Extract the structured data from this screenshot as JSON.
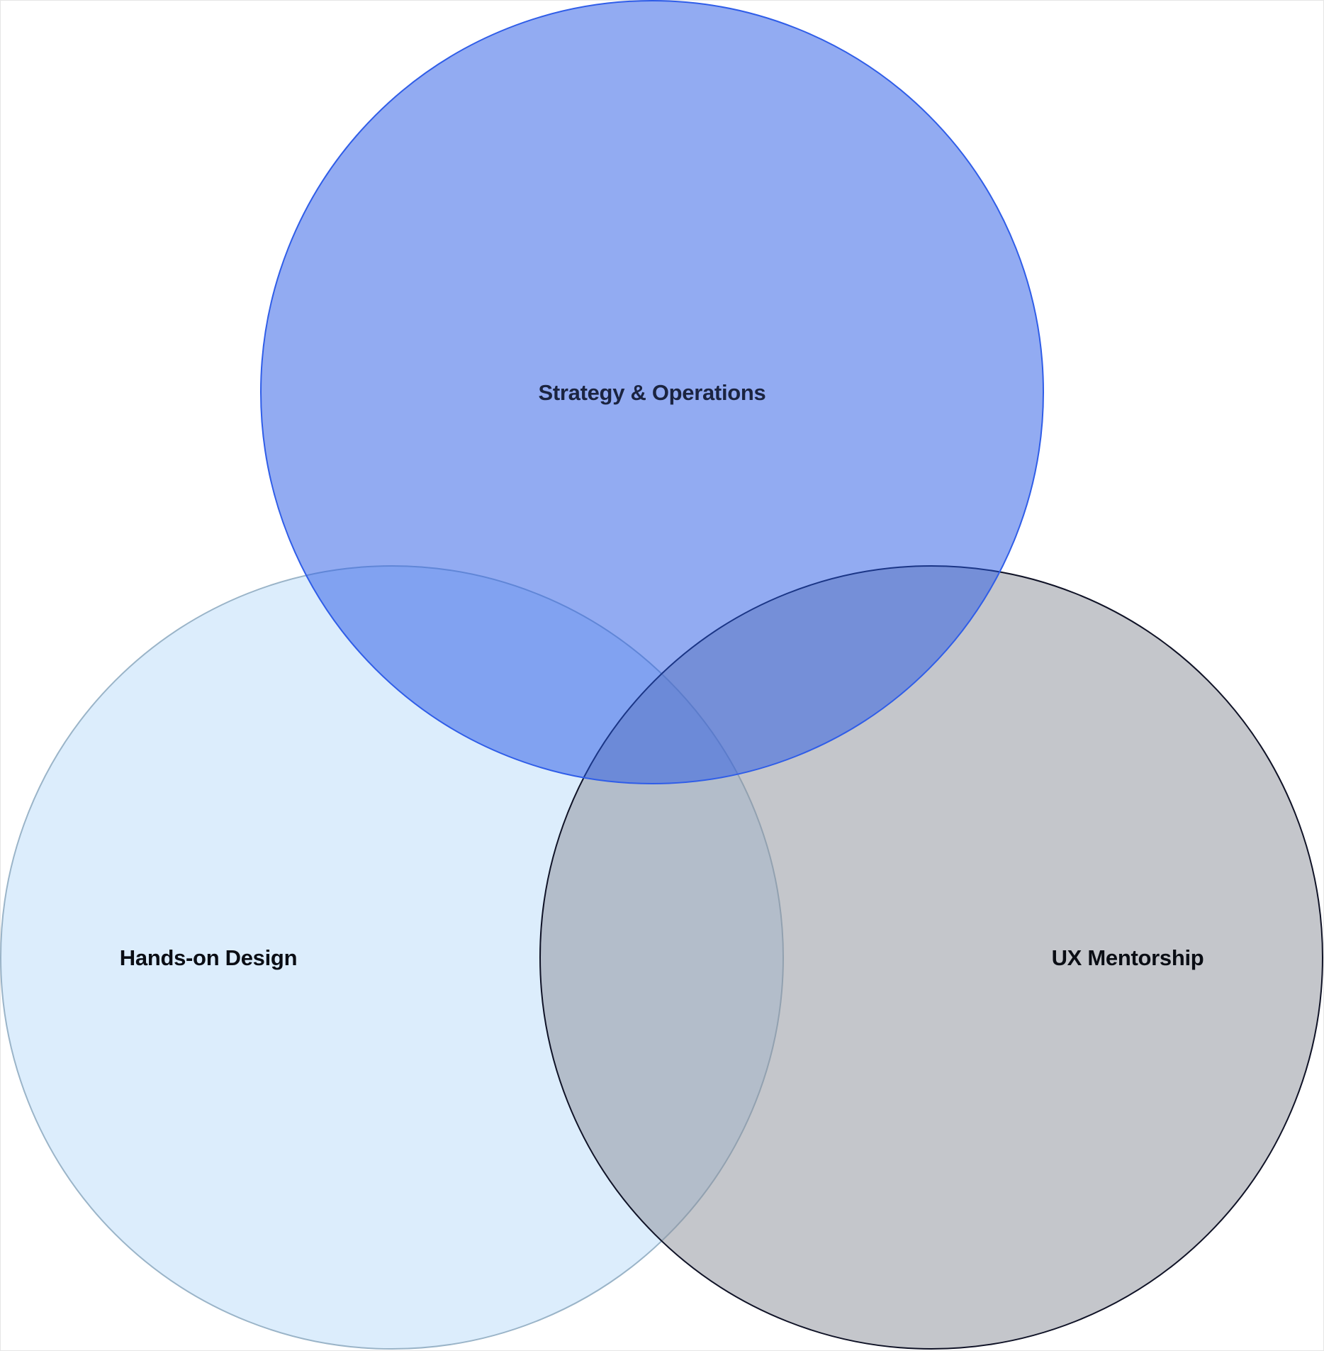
{
  "diagram": {
    "type": "venn",
    "sets": [
      {
        "id": "strategy",
        "label": "Strategy & Operations",
        "fill": "#2557e6",
        "fill_opacity": 0.5,
        "stroke": "#2f5de8",
        "text_color": "#1b2440"
      },
      {
        "id": "design",
        "label": "Hands-on Design",
        "fill": "#b9dcfa",
        "fill_opacity": 0.5,
        "stroke": "#9ab4c8",
        "text_color": "#0a0d14"
      },
      {
        "id": "mentorship",
        "label": "UX Mentorship",
        "fill": "#8a8d98",
        "fill_opacity": 0.5,
        "stroke": "#0f1226",
        "text_color": "#0a0d14"
      }
    ]
  }
}
